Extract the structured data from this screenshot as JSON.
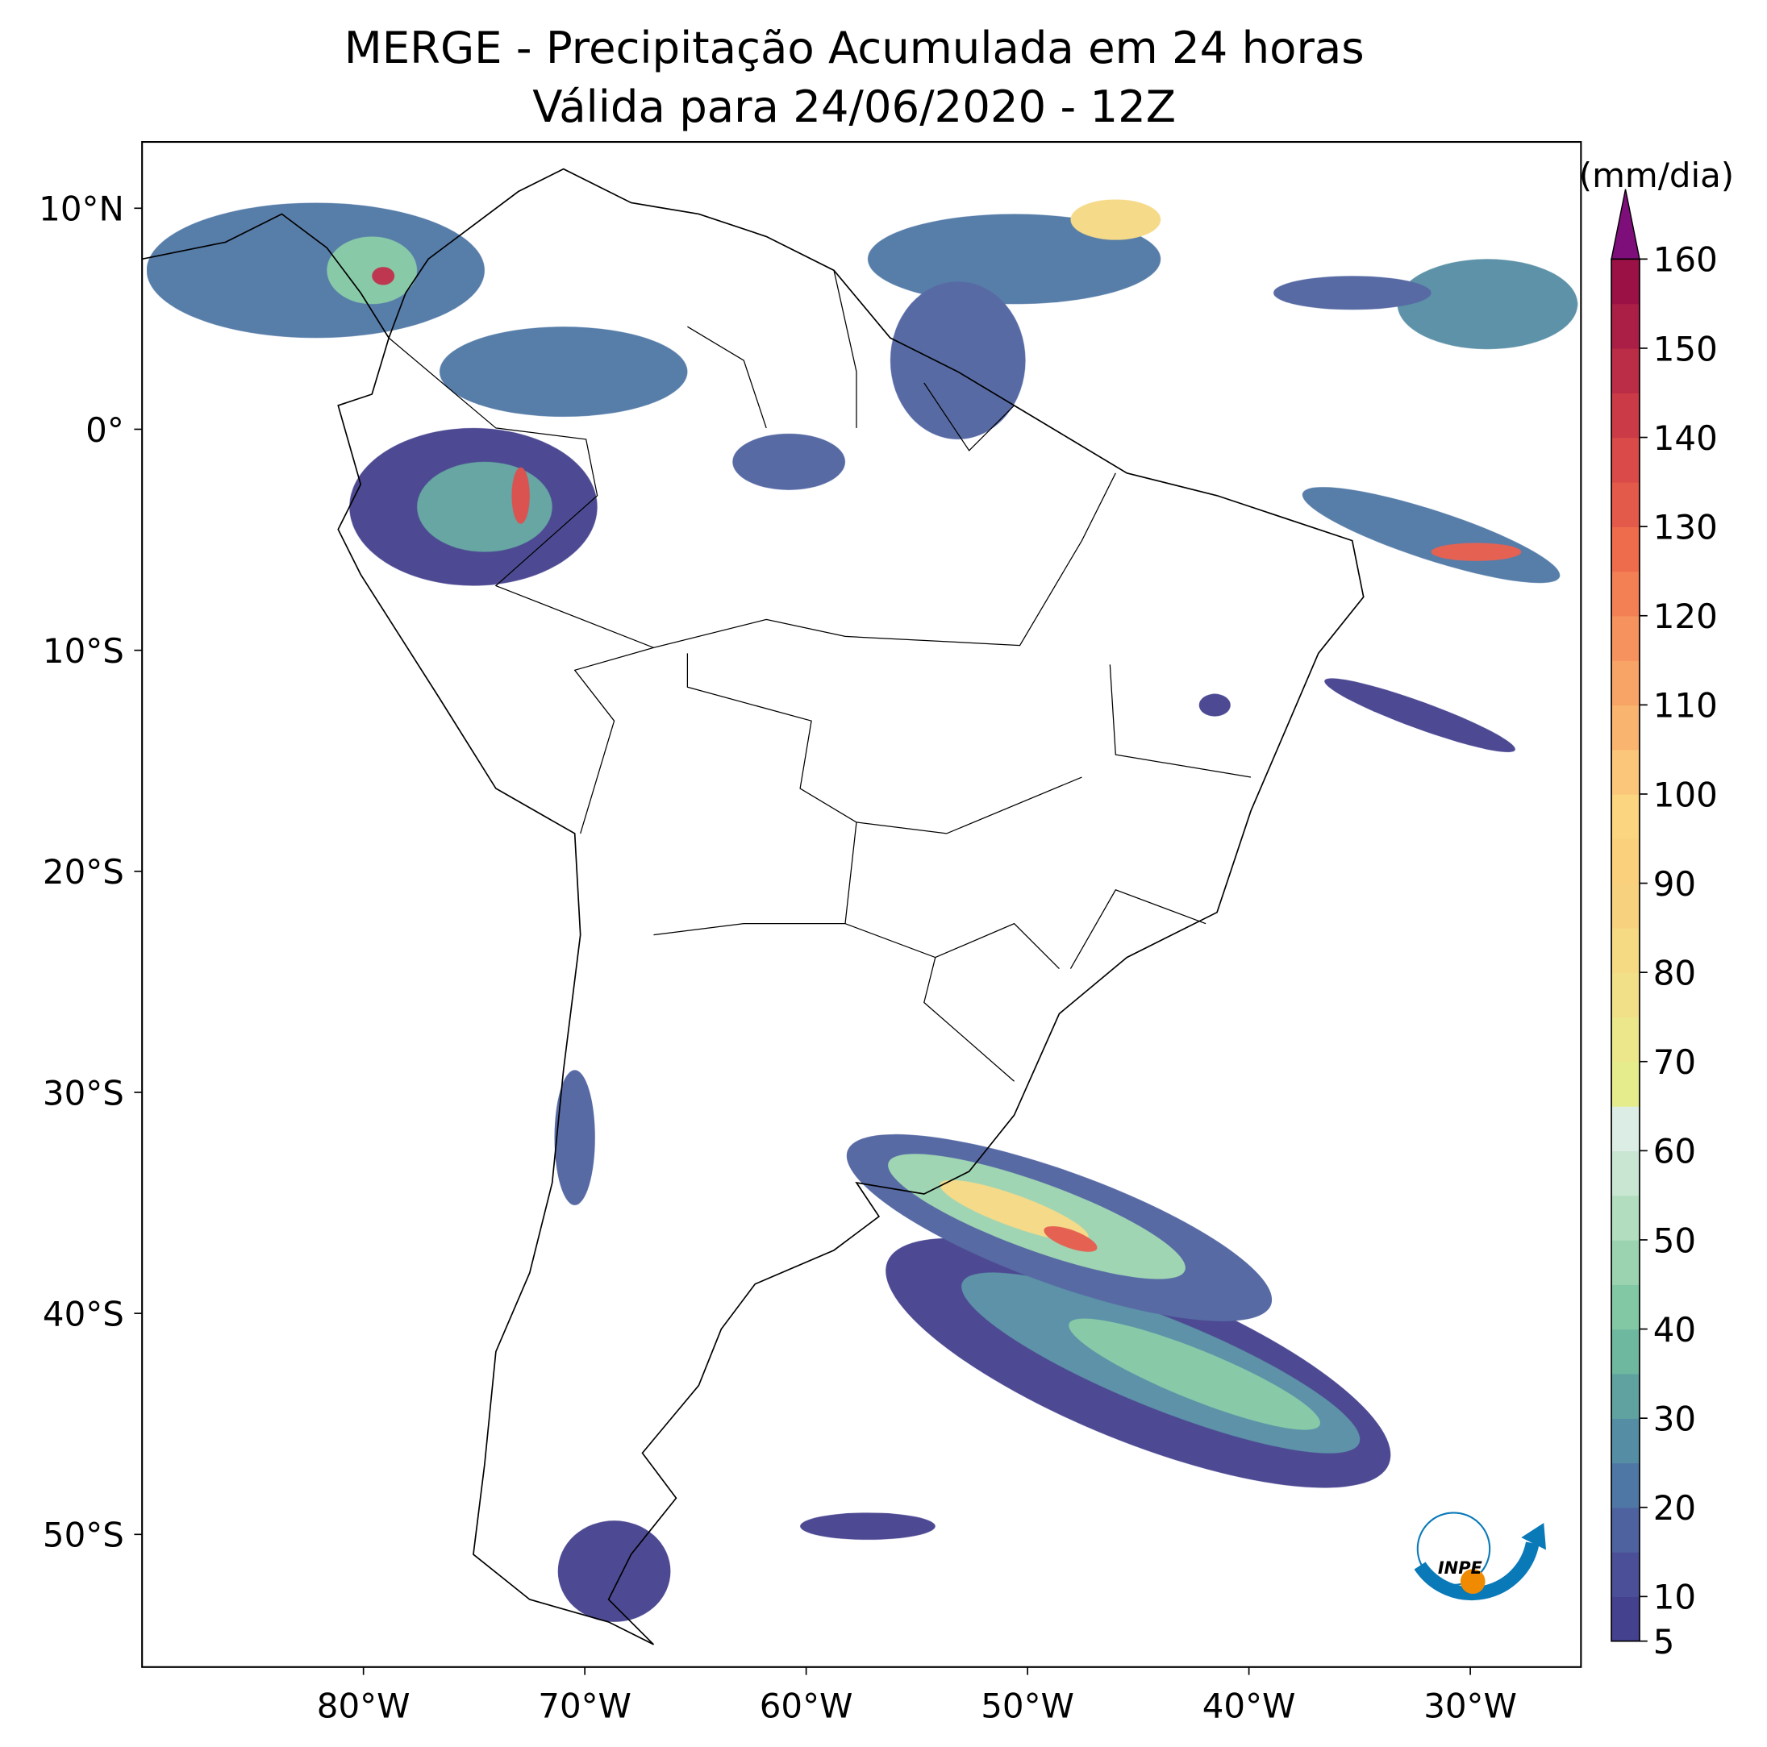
{
  "chart_data": {
    "type": "map",
    "title": "MERGE - Precipitação Acumulada em 24 horas",
    "subtitle": "Válida para 24/06/2020 - 12Z",
    "xlim": [
      -90,
      -25
    ],
    "ylim": [
      -56,
      13
    ],
    "xticks": [
      {
        "value": -80,
        "label": "80°W"
      },
      {
        "value": -70,
        "label": "70°W"
      },
      {
        "value": -60,
        "label": "60°W"
      },
      {
        "value": -50,
        "label": "50°W"
      },
      {
        "value": -40,
        "label": "40°W"
      },
      {
        "value": -30,
        "label": "30°W"
      }
    ],
    "yticks": [
      {
        "value": 10,
        "label": "10°N"
      },
      {
        "value": 0,
        "label": "0°"
      },
      {
        "value": -10,
        "label": "10°S"
      },
      {
        "value": -20,
        "label": "20°S"
      },
      {
        "value": -30,
        "label": "30°S"
      },
      {
        "value": -40,
        "label": "40°S"
      },
      {
        "value": -50,
        "label": "50°S"
      }
    ],
    "logo": "INPE",
    "colorbar": {
      "label": "(mm/dia)",
      "levels": [
        5,
        10,
        15,
        20,
        25,
        30,
        35,
        40,
        45,
        50,
        55,
        60,
        65,
        70,
        75,
        80,
        85,
        90,
        95,
        100,
        105,
        110,
        115,
        120,
        125,
        130,
        135,
        140,
        145,
        150,
        155,
        160
      ],
      "ticks": [
        5,
        10,
        20,
        30,
        40,
        50,
        60,
        70,
        80,
        90,
        100,
        110,
        120,
        130,
        140,
        150,
        160
      ],
      "colors": [
        "#44418e",
        "#4a4f97",
        "#4e62a0",
        "#4f77a5",
        "#558da4",
        "#5fa29f",
        "#6db89f",
        "#82c8a4",
        "#9bd3b0",
        "#b3ddbf",
        "#c8e6d1",
        "#dcede6",
        "#e4ec8c",
        "#ece78a",
        "#f1e088",
        "#f5d983",
        "#f8d17e",
        "#fad07c",
        "#fbd57f",
        "#fbc67a",
        "#f9b46f",
        "#f8a466",
        "#f6925d",
        "#f37f54",
        "#ee6c4c",
        "#e45a4a",
        "#d94a48",
        "#cb3b47",
        "#bb2c47",
        "#ab1f47",
        "#9b1146"
      ],
      "extend_color": "#7d0e7a"
    }
  }
}
